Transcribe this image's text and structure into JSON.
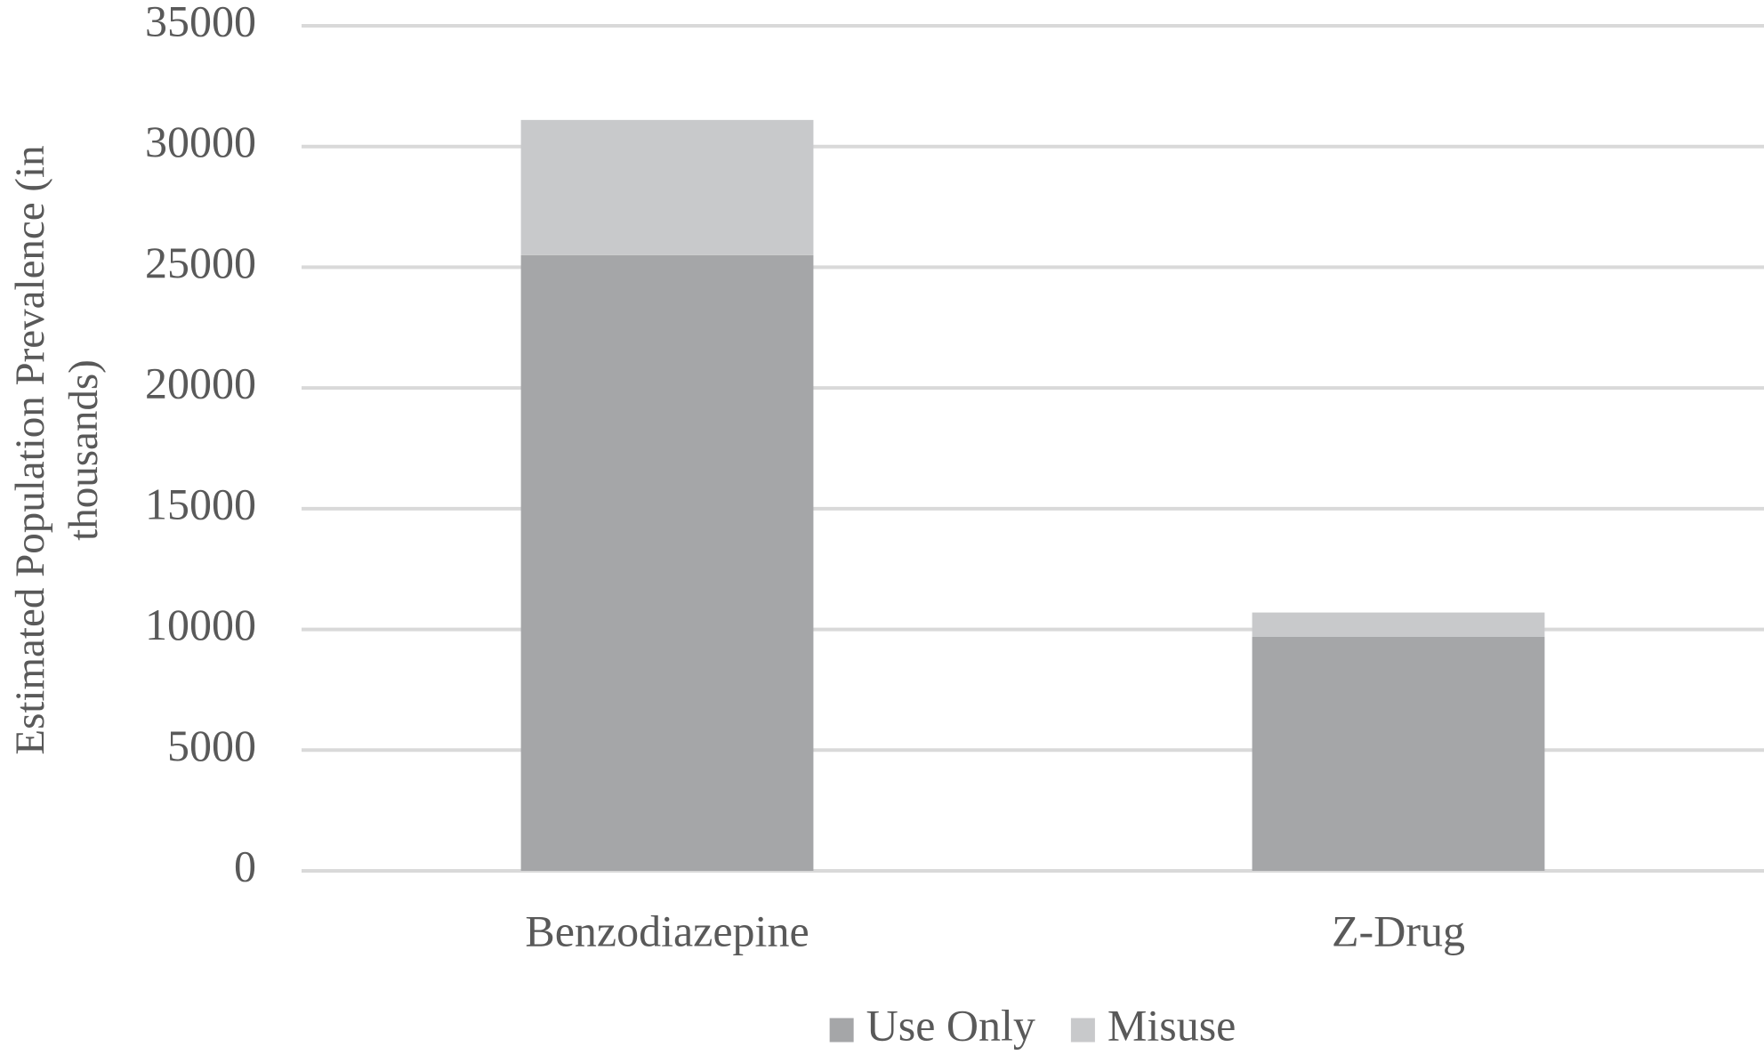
{
  "chart_data": {
    "type": "stacked_bar",
    "y_label": "Estimated Population Prevalence (in thousands)",
    "categories": [
      "Benzodiazepine",
      "Z-Drug"
    ],
    "series": [
      {
        "name": "Use Only",
        "color": "#a5a6a8",
        "values": [
          25500,
          9700
        ]
      },
      {
        "name": "Misuse",
        "color": "#c8c9cb",
        "values": [
          5600,
          1000
        ]
      }
    ],
    "ylim": [
      0,
      35000
    ],
    "yticks": [
      0,
      5000,
      10000,
      15000,
      20000,
      25000,
      30000,
      35000
    ],
    "grid": true,
    "legend": "bottom"
  }
}
